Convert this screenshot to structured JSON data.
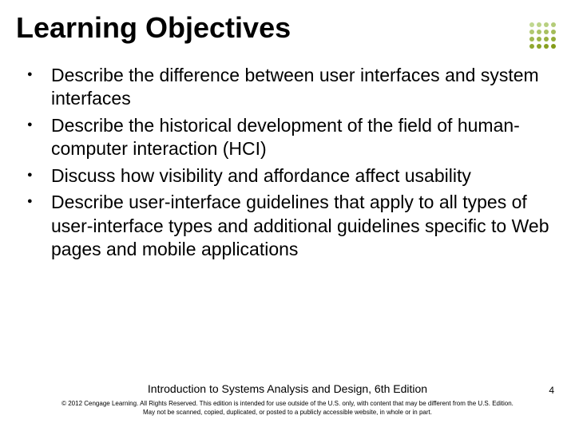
{
  "title": "Learning Objectives",
  "title_fontsize": 36,
  "title_color": "#000000",
  "bullets": [
    "Describe the difference between user interfaces and system interfaces",
    "Describe the historical development of the field of human-computer interaction (HCI)",
    "Discuss how visibility and affordance affect usability",
    "Describe user-interface guidelines that apply to all types of user-interface types and additional guidelines specific to Web pages and mobile applications"
  ],
  "bullet_fontsize": 23,
  "bullet_color": "#000000",
  "bullet_marker_color": "#000000",
  "corner_dots": {
    "colors": [
      "#c0d890",
      "#bcd488",
      "#b8d080",
      "#b4cc78",
      "#b0c870",
      "#acc468",
      "#a8c060",
      "#a4bc58",
      "#a0b850",
      "#9cb448",
      "#98b040",
      "#94ac38",
      "#90a830",
      "#8ca428",
      "#88a020",
      "#849c18"
    ]
  },
  "footer": {
    "book_title": "Introduction to Systems Analysis and Design, 6th Edition",
    "book_title_fontsize": 14,
    "copyright_line1": "© 2012 Cengage Learning. All Rights Reserved. This edition is intended for use outside of the U.S. only, with content that may be different from the U.S. Edition.",
    "copyright_line2": "May not be scanned, copied, duplicated, or posted to a publicly accessible website, in whole or in part.",
    "copyright_fontsize": 8
  },
  "page_number": "4",
  "background_color": "#ffffff"
}
